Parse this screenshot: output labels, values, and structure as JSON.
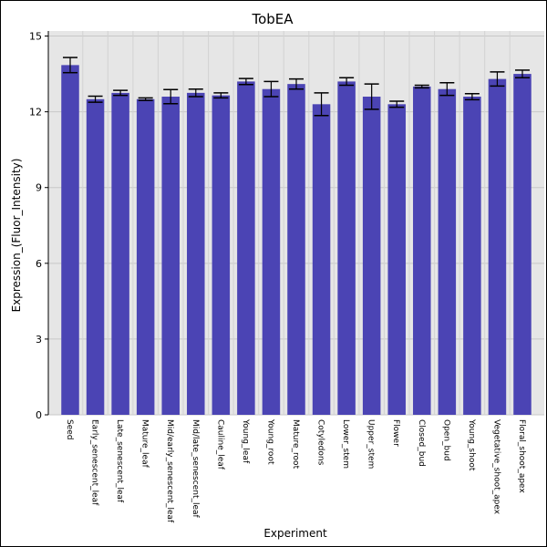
{
  "chart_data": {
    "type": "bar",
    "title": "TobEA",
    "xlabel": "Experiment",
    "ylabel": "Expression_(Fluor_Intensity)",
    "ylim": [
      0,
      15.2
    ],
    "yticks": [
      0,
      3,
      6,
      9,
      12,
      15
    ],
    "grid": true,
    "bar_color": "#4b44b4",
    "plot_bg": "#e6e6e6",
    "categories": [
      "Seed",
      "Early_senescent_leaf",
      "Late_senescent_leaf",
      "Mature_leaf",
      "Mid/early_senescent_leaf",
      "Mid/late_senescent_leaf",
      "Cauline_leaf",
      "Young_leaf",
      "Young_root",
      "Mature_root",
      "Cotyledons",
      "Lower_stem",
      "Upper_stem",
      "Flower",
      "Closed_bud",
      "Open_bud",
      "Young_shoot",
      "Vegetative_shoot_apex",
      "Floral_shoot_apex"
    ],
    "values": [
      13.85,
      12.5,
      12.75,
      12.5,
      12.6,
      12.75,
      12.65,
      13.2,
      12.9,
      13.1,
      12.3,
      13.2,
      12.6,
      12.3,
      13.0,
      12.9,
      12.6,
      13.3,
      13.5
    ],
    "errors": [
      0.3,
      0.12,
      0.1,
      0.05,
      0.28,
      0.15,
      0.1,
      0.12,
      0.3,
      0.2,
      0.45,
      0.15,
      0.5,
      0.12,
      0.05,
      0.25,
      0.12,
      0.28,
      0.15
    ]
  }
}
